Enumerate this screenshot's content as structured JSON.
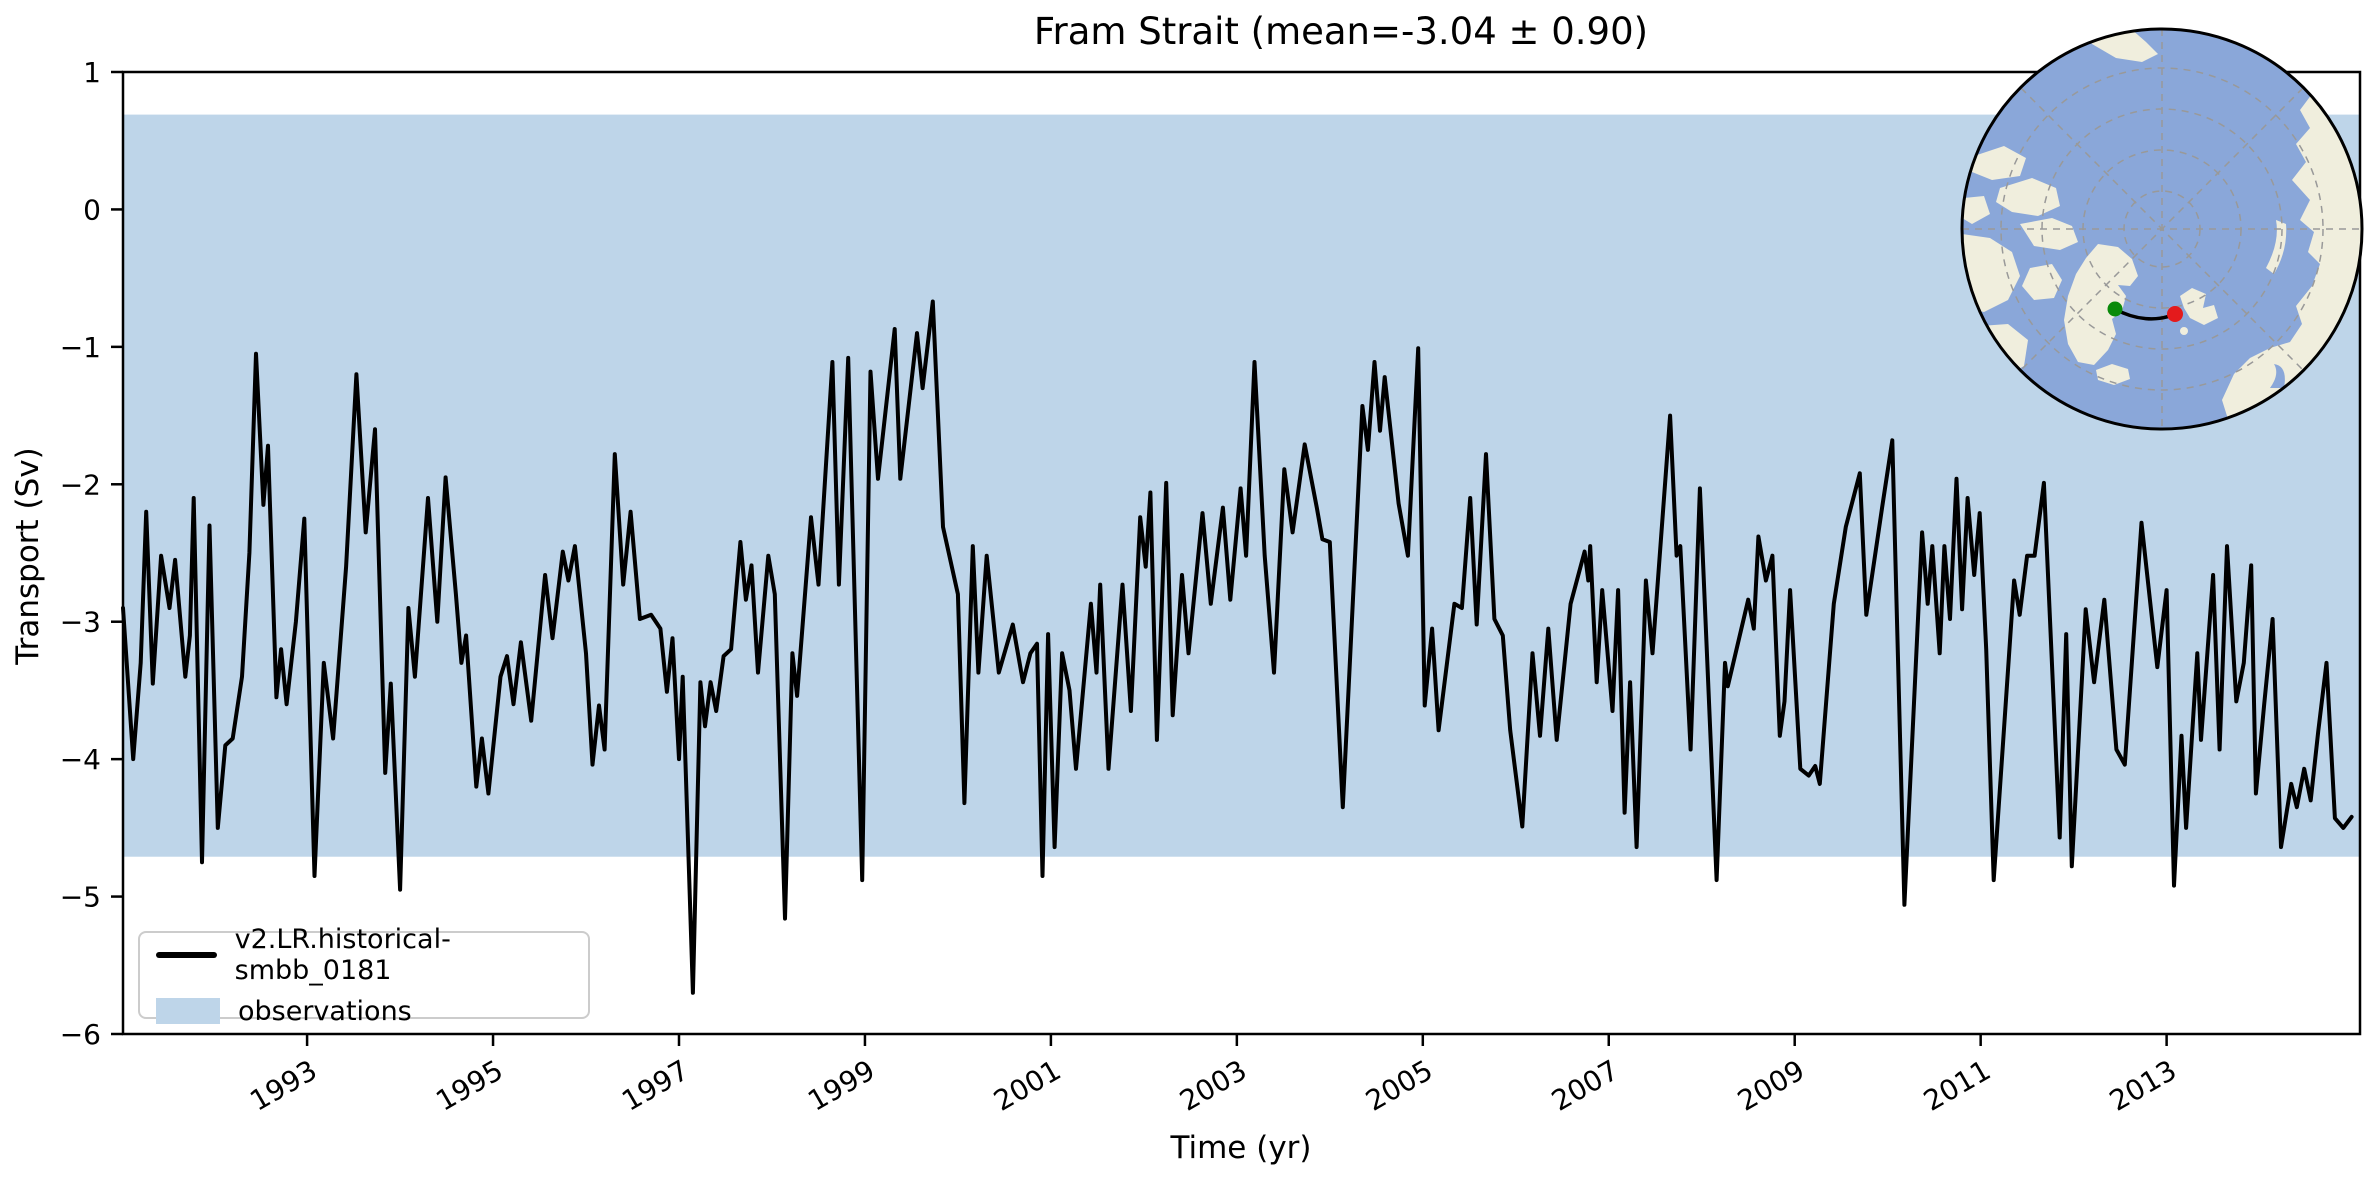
{
  "title": "Fram Strait (mean=-3.04 ± 0.90)",
  "xlabel": "Time (yr)",
  "ylabel": "Transport (Sv)",
  "legend": {
    "series_label": "v2.LR.historical-smbb_0181",
    "band_label": "observations"
  },
  "colors": {
    "series": "#000000",
    "band": "#bed5e9",
    "ocean": "#8aa7d9",
    "land": "#f0eedd",
    "graticule": "#999999",
    "start_marker": "#0a8a0a",
    "end_marker": "#e41a1c",
    "transect": "#000000"
  },
  "inset": {
    "description": "north-polar-map-with-fram-strait-transect"
  },
  "chart_data": {
    "type": "line",
    "title": "Fram Strait (mean=-3.04 ± 0.90)",
    "xlabel": "Time (yr)",
    "ylabel": "Transport (Sv)",
    "xlim": [
      1991.02,
      2015.08
    ],
    "ylim": [
      -6,
      1
    ],
    "grid": false,
    "legend_position": "lower left",
    "xticks": [
      {
        "v": 1993,
        "label": "1993"
      },
      {
        "v": 1995,
        "label": "1995"
      },
      {
        "v": 1997,
        "label": "1997"
      },
      {
        "v": 1999,
        "label": "1999"
      },
      {
        "v": 2001,
        "label": "2001"
      },
      {
        "v": 2003,
        "label": "2003"
      },
      {
        "v": 2005,
        "label": "2005"
      },
      {
        "v": 2007,
        "label": "2007"
      },
      {
        "v": 2009,
        "label": "2009"
      },
      {
        "v": 2011,
        "label": "2011"
      },
      {
        "v": 2013,
        "label": "2013"
      }
    ],
    "yticks": [
      {
        "v": 1,
        "label": "1"
      },
      {
        "v": 0,
        "label": "0"
      },
      {
        "v": -1,
        "label": "−1"
      },
      {
        "v": -2,
        "label": "−2"
      },
      {
        "v": -3,
        "label": "−3"
      },
      {
        "v": -4,
        "label": "−4"
      },
      {
        "v": -5,
        "label": "−5"
      },
      {
        "v": -6,
        "label": "−6"
      }
    ],
    "observations_band": {
      "label": "observations",
      "low": -4.71,
      "high": 0.69
    },
    "series": [
      {
        "name": "v2.LR.historical-smbb_0181",
        "points": [
          [
            1991.02,
            -2.9
          ],
          [
            1991.13,
            -4.0
          ],
          [
            1991.21,
            -3.3
          ],
          [
            1991.27,
            -2.2
          ],
          [
            1991.34,
            -3.45
          ],
          [
            1991.43,
            -2.52
          ],
          [
            1991.52,
            -2.9
          ],
          [
            1991.58,
            -2.55
          ],
          [
            1991.69,
            -3.4
          ],
          [
            1991.74,
            -3.1
          ],
          [
            1991.78,
            -2.1
          ],
          [
            1991.87,
            -4.75
          ],
          [
            1991.95,
            -2.3
          ],
          [
            1992.04,
            -4.5
          ],
          [
            1992.12,
            -3.9
          ],
          [
            1992.2,
            -3.85
          ],
          [
            1992.3,
            -3.4
          ],
          [
            1992.38,
            -2.5
          ],
          [
            1992.45,
            -1.05
          ],
          [
            1992.53,
            -2.15
          ],
          [
            1992.58,
            -1.72
          ],
          [
            1992.67,
            -3.55
          ],
          [
            1992.72,
            -3.2
          ],
          [
            1992.78,
            -3.6
          ],
          [
            1992.88,
            -3.0
          ],
          [
            1992.97,
            -2.25
          ],
          [
            1993.08,
            -4.85
          ],
          [
            1993.18,
            -3.3
          ],
          [
            1993.28,
            -3.85
          ],
          [
            1993.42,
            -2.6
          ],
          [
            1993.53,
            -1.2
          ],
          [
            1993.63,
            -2.35
          ],
          [
            1993.73,
            -1.6
          ],
          [
            1993.84,
            -4.1
          ],
          [
            1993.9,
            -3.45
          ],
          [
            1994.0,
            -4.95
          ],
          [
            1994.09,
            -2.9
          ],
          [
            1994.16,
            -3.4
          ],
          [
            1994.3,
            -2.1
          ],
          [
            1994.4,
            -3.0
          ],
          [
            1994.49,
            -1.95
          ],
          [
            1994.6,
            -2.8
          ],
          [
            1994.66,
            -3.3
          ],
          [
            1994.71,
            -3.1
          ],
          [
            1994.82,
            -4.2
          ],
          [
            1994.88,
            -3.85
          ],
          [
            1994.95,
            -4.25
          ],
          [
            1995.08,
            -3.4
          ],
          [
            1995.15,
            -3.25
          ],
          [
            1995.22,
            -3.6
          ],
          [
            1995.3,
            -3.15
          ],
          [
            1995.41,
            -3.72
          ],
          [
            1995.56,
            -2.66
          ],
          [
            1995.64,
            -3.12
          ],
          [
            1995.75,
            -2.49
          ],
          [
            1995.81,
            -2.7
          ],
          [
            1995.88,
            -2.45
          ],
          [
            1996.0,
            -3.23
          ],
          [
            1996.07,
            -4.04
          ],
          [
            1996.14,
            -3.61
          ],
          [
            1996.2,
            -3.93
          ],
          [
            1996.31,
            -1.78
          ],
          [
            1996.4,
            -2.73
          ],
          [
            1996.48,
            -2.2
          ],
          [
            1996.58,
            -2.98
          ],
          [
            1996.7,
            -2.95
          ],
          [
            1996.8,
            -3.05
          ],
          [
            1996.87,
            -3.51
          ],
          [
            1996.93,
            -3.12
          ],
          [
            1997.0,
            -4.0
          ],
          [
            1997.04,
            -3.4
          ],
          [
            1997.15,
            -5.7
          ],
          [
            1997.23,
            -3.44
          ],
          [
            1997.28,
            -3.76
          ],
          [
            1997.34,
            -3.44
          ],
          [
            1997.4,
            -3.65
          ],
          [
            1997.48,
            -3.25
          ],
          [
            1997.56,
            -3.2
          ],
          [
            1997.66,
            -2.42
          ],
          [
            1997.72,
            -2.84
          ],
          [
            1997.78,
            -2.59
          ],
          [
            1997.85,
            -3.37
          ],
          [
            1997.96,
            -2.52
          ],
          [
            1998.03,
            -2.8
          ],
          [
            1998.14,
            -5.16
          ],
          [
            1998.22,
            -3.23
          ],
          [
            1998.27,
            -3.54
          ],
          [
            1998.42,
            -2.24
          ],
          [
            1998.5,
            -2.73
          ],
          [
            1998.65,
            -1.11
          ],
          [
            1998.72,
            -2.73
          ],
          [
            1998.82,
            -1.08
          ],
          [
            1998.97,
            -4.88
          ],
          [
            1999.06,
            -1.18
          ],
          [
            1999.14,
            -1.96
          ],
          [
            1999.32,
            -0.87
          ],
          [
            1999.38,
            -1.96
          ],
          [
            1999.56,
            -0.9
          ],
          [
            1999.62,
            -1.3
          ],
          [
            1999.73,
            -0.67
          ],
          [
            1999.84,
            -2.31
          ],
          [
            2000.0,
            -2.8
          ],
          [
            2000.07,
            -4.32
          ],
          [
            2000.16,
            -2.45
          ],
          [
            2000.22,
            -3.37
          ],
          [
            2000.31,
            -2.52
          ],
          [
            2000.44,
            -3.37
          ],
          [
            2000.59,
            -3.02
          ],
          [
            2000.7,
            -3.44
          ],
          [
            2000.78,
            -3.23
          ],
          [
            2000.85,
            -3.16
          ],
          [
            2000.91,
            -4.85
          ],
          [
            2000.97,
            -3.09
          ],
          [
            2001.04,
            -4.64
          ],
          [
            2001.12,
            -3.23
          ],
          [
            2001.2,
            -3.5
          ],
          [
            2001.27,
            -4.07
          ],
          [
            2001.43,
            -2.87
          ],
          [
            2001.49,
            -3.37
          ],
          [
            2001.53,
            -2.73
          ],
          [
            2001.62,
            -4.07
          ],
          [
            2001.77,
            -2.73
          ],
          [
            2001.86,
            -3.65
          ],
          [
            2001.96,
            -2.24
          ],
          [
            2002.02,
            -2.6
          ],
          [
            2002.07,
            -2.06
          ],
          [
            2002.14,
            -3.86
          ],
          [
            2002.24,
            -1.99
          ],
          [
            2002.31,
            -3.68
          ],
          [
            2002.41,
            -2.66
          ],
          [
            2002.48,
            -3.23
          ],
          [
            2002.63,
            -2.21
          ],
          [
            2002.72,
            -2.87
          ],
          [
            2002.85,
            -2.17
          ],
          [
            2002.93,
            -2.84
          ],
          [
            2003.04,
            -2.03
          ],
          [
            2003.1,
            -2.52
          ],
          [
            2003.19,
            -1.11
          ],
          [
            2003.3,
            -2.52
          ],
          [
            2003.4,
            -3.37
          ],
          [
            2003.51,
            -1.89
          ],
          [
            2003.6,
            -2.35
          ],
          [
            2003.73,
            -1.71
          ],
          [
            2003.86,
            -2.17
          ],
          [
            2003.92,
            -2.4
          ],
          [
            2004.0,
            -2.42
          ],
          [
            2004.14,
            -4.35
          ],
          [
            2004.35,
            -1.43
          ],
          [
            2004.41,
            -1.75
          ],
          [
            2004.48,
            -1.11
          ],
          [
            2004.54,
            -1.61
          ],
          [
            2004.59,
            -1.22
          ],
          [
            2004.74,
            -2.14
          ],
          [
            2004.84,
            -2.52
          ],
          [
            2004.95,
            -1.01
          ],
          [
            2005.02,
            -3.61
          ],
          [
            2005.1,
            -3.05
          ],
          [
            2005.17,
            -3.79
          ],
          [
            2005.34,
            -2.87
          ],
          [
            2005.42,
            -2.9
          ],
          [
            2005.51,
            -2.1
          ],
          [
            2005.58,
            -3.02
          ],
          [
            2005.68,
            -1.78
          ],
          [
            2005.77,
            -2.98
          ],
          [
            2005.86,
            -3.1
          ],
          [
            2005.94,
            -3.79
          ],
          [
            2006.07,
            -4.49
          ],
          [
            2006.18,
            -3.23
          ],
          [
            2006.26,
            -3.83
          ],
          [
            2006.35,
            -3.05
          ],
          [
            2006.44,
            -3.86
          ],
          [
            2006.59,
            -2.87
          ],
          [
            2006.74,
            -2.49
          ],
          [
            2006.78,
            -2.7
          ],
          [
            2006.8,
            -2.45
          ],
          [
            2006.87,
            -3.44
          ],
          [
            2006.93,
            -2.77
          ],
          [
            2007.04,
            -3.65
          ],
          [
            2007.1,
            -2.77
          ],
          [
            2007.17,
            -4.39
          ],
          [
            2007.23,
            -3.44
          ],
          [
            2007.3,
            -4.64
          ],
          [
            2007.4,
            -2.7
          ],
          [
            2007.47,
            -3.23
          ],
          [
            2007.66,
            -1.5
          ],
          [
            2007.73,
            -2.52
          ],
          [
            2007.77,
            -2.45
          ],
          [
            2007.88,
            -3.93
          ],
          [
            2007.98,
            -2.03
          ],
          [
            2008.16,
            -4.88
          ],
          [
            2008.25,
            -3.3
          ],
          [
            2008.28,
            -3.47
          ],
          [
            2008.5,
            -2.84
          ],
          [
            2008.56,
            -3.05
          ],
          [
            2008.61,
            -2.38
          ],
          [
            2008.69,
            -2.7
          ],
          [
            2008.76,
            -2.52
          ],
          [
            2008.84,
            -3.83
          ],
          [
            2008.89,
            -3.58
          ],
          [
            2008.95,
            -2.77
          ],
          [
            2009.06,
            -4.07
          ],
          [
            2009.15,
            -4.12
          ],
          [
            2009.22,
            -4.05
          ],
          [
            2009.27,
            -4.18
          ],
          [
            2009.42,
            -2.87
          ],
          [
            2009.55,
            -2.31
          ],
          [
            2009.7,
            -1.92
          ],
          [
            2009.77,
            -2.95
          ],
          [
            2009.94,
            -2.17
          ],
          [
            2010.05,
            -1.68
          ],
          [
            2010.18,
            -5.06
          ],
          [
            2010.37,
            -2.35
          ],
          [
            2010.43,
            -2.87
          ],
          [
            2010.48,
            -2.45
          ],
          [
            2010.56,
            -3.23
          ],
          [
            2010.61,
            -2.45
          ],
          [
            2010.67,
            -2.98
          ],
          [
            2010.74,
            -1.96
          ],
          [
            2010.8,
            -2.91
          ],
          [
            2010.86,
            -2.1
          ],
          [
            2010.93,
            -2.66
          ],
          [
            2010.99,
            -2.21
          ],
          [
            2011.06,
            -3.2
          ],
          [
            2011.14,
            -4.88
          ],
          [
            2011.36,
            -2.7
          ],
          [
            2011.42,
            -2.95
          ],
          [
            2011.5,
            -2.52
          ],
          [
            2011.58,
            -2.52
          ],
          [
            2011.68,
            -1.99
          ],
          [
            2011.85,
            -4.57
          ],
          [
            2011.92,
            -3.09
          ],
          [
            2011.98,
            -4.78
          ],
          [
            2012.13,
            -2.91
          ],
          [
            2012.22,
            -3.44
          ],
          [
            2012.33,
            -2.84
          ],
          [
            2012.46,
            -3.93
          ],
          [
            2012.55,
            -4.04
          ],
          [
            2012.73,
            -2.28
          ],
          [
            2012.9,
            -3.33
          ],
          [
            2013.0,
            -2.77
          ],
          [
            2013.08,
            -4.92
          ],
          [
            2013.16,
            -3.83
          ],
          [
            2013.21,
            -4.5
          ],
          [
            2013.33,
            -3.23
          ],
          [
            2013.37,
            -3.86
          ],
          [
            2013.5,
            -2.66
          ],
          [
            2013.57,
            -3.93
          ],
          [
            2013.65,
            -2.45
          ],
          [
            2013.75,
            -3.58
          ],
          [
            2013.83,
            -3.3
          ],
          [
            2013.91,
            -2.59
          ],
          [
            2013.96,
            -4.25
          ],
          [
            2014.05,
            -3.6
          ],
          [
            2014.14,
            -2.98
          ],
          [
            2014.23,
            -4.64
          ],
          [
            2014.34,
            -4.18
          ],
          [
            2014.4,
            -4.35
          ],
          [
            2014.48,
            -4.07
          ],
          [
            2014.55,
            -4.3
          ],
          [
            2014.63,
            -3.8
          ],
          [
            2014.72,
            -3.3
          ],
          [
            2014.81,
            -4.43
          ],
          [
            2014.9,
            -4.5
          ],
          [
            2014.99,
            -4.42
          ]
        ]
      }
    ]
  }
}
